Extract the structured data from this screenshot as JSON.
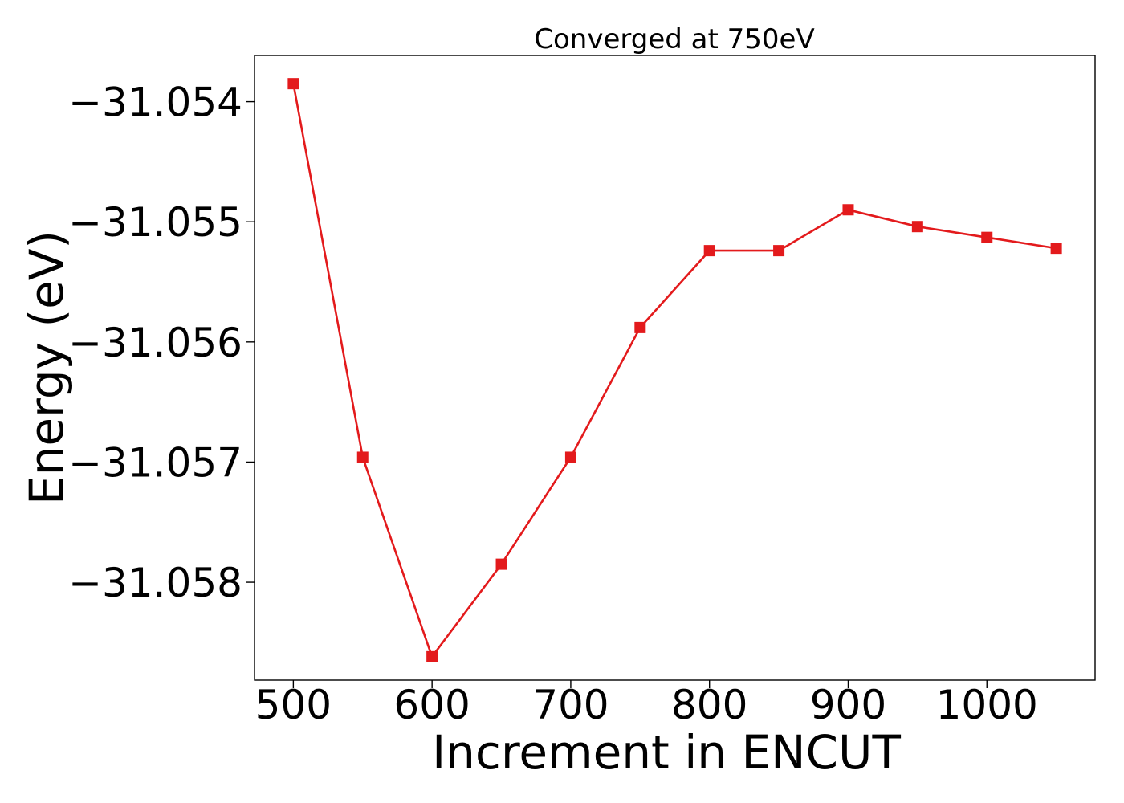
{
  "chart_data": {
    "type": "line",
    "title": "Converged at 750eV",
    "xlabel": "Increment in ENCUT",
    "ylabel": "Energy (eV)",
    "x": [
      500,
      550,
      600,
      650,
      700,
      750,
      800,
      850,
      900,
      950,
      1000,
      1050
    ],
    "series": [
      {
        "values": [
          -31.05385,
          -31.05696,
          -31.05862,
          -31.05785,
          -31.05696,
          -31.05588,
          -31.05524,
          -31.05524,
          -31.0549,
          -31.05504,
          -31.05513,
          -31.05522
        ],
        "color": "#e31a1c",
        "marker": "square"
      }
    ],
    "xlim": [
      472,
      1078
    ],
    "ylim": [
      -31.058815,
      -31.053615
    ],
    "xticks": [
      500,
      600,
      700,
      800,
      900,
      1000
    ],
    "xtick_labels": [
      "500",
      "600",
      "700",
      "800",
      "900",
      "1000"
    ],
    "yticks": [
      -31.054,
      -31.055,
      -31.056,
      -31.057,
      -31.058
    ],
    "ytick_labels": [
      "−31.054",
      "−31.055",
      "−31.056",
      "−31.057",
      "−31.058"
    ],
    "grid": false,
    "legend": "none"
  }
}
